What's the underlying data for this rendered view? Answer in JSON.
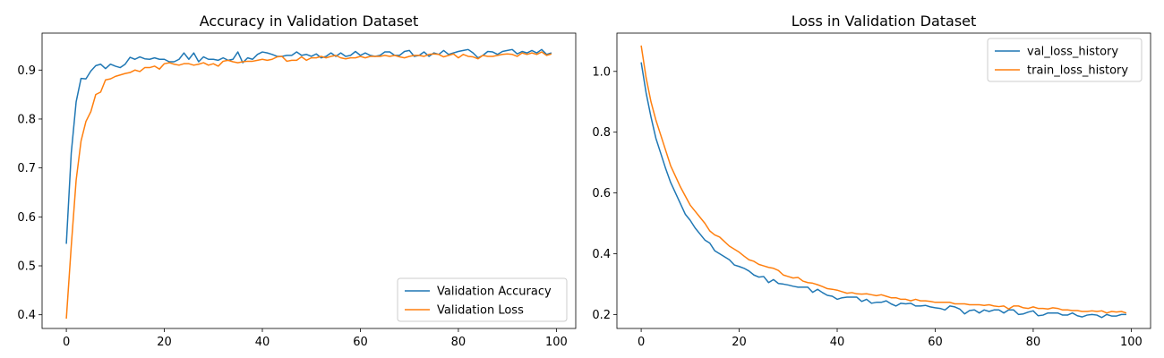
{
  "chart_data": [
    {
      "type": "line",
      "title": "Accuracy in Validation Dataset",
      "xlabel": "",
      "ylabel": "",
      "xlim": [
        -4.95,
        103.95
      ],
      "ylim": [
        0.372,
        0.9755
      ],
      "xticks": [
        0,
        20,
        40,
        60,
        80,
        100
      ],
      "yticks": [
        0.4,
        0.5,
        0.6,
        0.7,
        0.8,
        0.9
      ],
      "ytick_format": 1,
      "grid": false,
      "legend_position": "lower-right",
      "series": [
        {
          "name": "Validation Accuracy",
          "color": "#1f77b4",
          "x_start": 0,
          "x_step": 1,
          "values": [
            0.545,
            0.73,
            0.835,
            0.883,
            0.882,
            0.898,
            0.909,
            0.912,
            0.903,
            0.912,
            0.908,
            0.905,
            0.912,
            0.926,
            0.922,
            0.927,
            0.923,
            0.922,
            0.925,
            0.922,
            0.922,
            0.917,
            0.917,
            0.922,
            0.935,
            0.922,
            0.935,
            0.917,
            0.927,
            0.922,
            0.922,
            0.92,
            0.925,
            0.92,
            0.922,
            0.937,
            0.915,
            0.925,
            0.922,
            0.932,
            0.937,
            0.935,
            0.932,
            0.928,
            0.928,
            0.93,
            0.93,
            0.937,
            0.93,
            0.932,
            0.928,
            0.933,
            0.925,
            0.928,
            0.935,
            0.928,
            0.935,
            0.928,
            0.93,
            0.938,
            0.93,
            0.935,
            0.93,
            0.928,
            0.93,
            0.937,
            0.937,
            0.93,
            0.93,
            0.938,
            0.94,
            0.928,
            0.93,
            0.937,
            0.928,
            0.935,
            0.932,
            0.94,
            0.932,
            0.935,
            0.938,
            0.94,
            0.942,
            0.935,
            0.925,
            0.93,
            0.938,
            0.937,
            0.932,
            0.938,
            0.94,
            0.942,
            0.933,
            0.938,
            0.935,
            0.94,
            0.935,
            0.942,
            0.932,
            0.935
          ]
        },
        {
          "name": "Validation Loss",
          "color": "#ff7f0e",
          "x_start": 0,
          "x_step": 1,
          "values": [
            0.392,
            0.54,
            0.675,
            0.755,
            0.795,
            0.815,
            0.85,
            0.855,
            0.88,
            0.882,
            0.887,
            0.89,
            0.893,
            0.895,
            0.9,
            0.897,
            0.905,
            0.905,
            0.908,
            0.902,
            0.913,
            0.915,
            0.912,
            0.91,
            0.913,
            0.913,
            0.91,
            0.912,
            0.915,
            0.91,
            0.913,
            0.908,
            0.918,
            0.92,
            0.917,
            0.915,
            0.917,
            0.918,
            0.918,
            0.92,
            0.922,
            0.92,
            0.922,
            0.927,
            0.928,
            0.918,
            0.92,
            0.92,
            0.927,
            0.92,
            0.925,
            0.925,
            0.928,
            0.925,
            0.928,
            0.93,
            0.925,
            0.923,
            0.925,
            0.925,
            0.928,
            0.925,
            0.928,
            0.928,
            0.928,
            0.93,
            0.928,
            0.93,
            0.927,
            0.925,
            0.928,
            0.93,
            0.93,
            0.928,
            0.932,
            0.933,
            0.932,
            0.927,
            0.93,
            0.933,
            0.925,
            0.932,
            0.928,
            0.927,
            0.923,
            0.93,
            0.928,
            0.928,
            0.93,
            0.932,
            0.933,
            0.932,
            0.928,
            0.935,
            0.932,
            0.935,
            0.932,
            0.937,
            0.93,
            0.933
          ]
        }
      ]
    },
    {
      "type": "line",
      "title": "Loss in Validation Dataset",
      "xlabel": "",
      "ylabel": "",
      "xlim": [
        -4.95,
        103.95
      ],
      "ylim": [
        0.154,
        1.126
      ],
      "xticks": [
        0,
        20,
        40,
        60,
        80,
        100
      ],
      "yticks": [
        0.2,
        0.4,
        0.6,
        0.8,
        1.0
      ],
      "ytick_format": 1,
      "grid": false,
      "legend_position": "top-right",
      "series": [
        {
          "name": "val_loss_history",
          "color": "#1f77b4",
          "x_start": 0,
          "x_step": 1,
          "values": [
            1.03,
            0.93,
            0.85,
            0.78,
            0.73,
            0.68,
            0.635,
            0.6,
            0.565,
            0.53,
            0.51,
            0.485,
            0.465,
            0.445,
            0.435,
            0.41,
            0.4,
            0.39,
            0.38,
            0.363,
            0.358,
            0.352,
            0.343,
            0.33,
            0.323,
            0.325,
            0.305,
            0.315,
            0.302,
            0.3,
            0.297,
            0.293,
            0.29,
            0.29,
            0.29,
            0.273,
            0.283,
            0.272,
            0.263,
            0.26,
            0.25,
            0.255,
            0.257,
            0.257,
            0.257,
            0.243,
            0.25,
            0.237,
            0.24,
            0.24,
            0.245,
            0.235,
            0.228,
            0.237,
            0.235,
            0.237,
            0.228,
            0.228,
            0.23,
            0.225,
            0.222,
            0.22,
            0.215,
            0.228,
            0.225,
            0.218,
            0.202,
            0.213,
            0.215,
            0.205,
            0.215,
            0.21,
            0.215,
            0.215,
            0.205,
            0.215,
            0.215,
            0.2,
            0.202,
            0.208,
            0.212,
            0.196,
            0.198,
            0.205,
            0.205,
            0.205,
            0.198,
            0.198,
            0.205,
            0.196,
            0.192,
            0.198,
            0.2,
            0.198,
            0.19,
            0.2,
            0.195,
            0.195,
            0.2,
            0.2
          ]
        },
        {
          "name": "train_loss_history",
          "color": "#ff7f0e",
          "x_start": 0,
          "x_step": 1,
          "values": [
            1.085,
            0.98,
            0.9,
            0.84,
            0.79,
            0.74,
            0.69,
            0.655,
            0.62,
            0.59,
            0.56,
            0.54,
            0.52,
            0.5,
            0.475,
            0.462,
            0.455,
            0.44,
            0.425,
            0.415,
            0.405,
            0.392,
            0.38,
            0.375,
            0.365,
            0.36,
            0.355,
            0.352,
            0.345,
            0.33,
            0.325,
            0.32,
            0.322,
            0.31,
            0.305,
            0.303,
            0.298,
            0.292,
            0.285,
            0.283,
            0.28,
            0.275,
            0.27,
            0.272,
            0.268,
            0.267,
            0.268,
            0.265,
            0.262,
            0.265,
            0.26,
            0.255,
            0.255,
            0.25,
            0.25,
            0.245,
            0.25,
            0.245,
            0.245,
            0.243,
            0.24,
            0.24,
            0.24,
            0.24,
            0.235,
            0.235,
            0.235,
            0.232,
            0.232,
            0.232,
            0.23,
            0.232,
            0.228,
            0.226,
            0.228,
            0.218,
            0.228,
            0.228,
            0.222,
            0.22,
            0.225,
            0.22,
            0.22,
            0.218,
            0.222,
            0.22,
            0.215,
            0.215,
            0.213,
            0.213,
            0.21,
            0.21,
            0.212,
            0.21,
            0.212,
            0.205,
            0.21,
            0.208,
            0.21,
            0.205
          ]
        }
      ]
    }
  ]
}
